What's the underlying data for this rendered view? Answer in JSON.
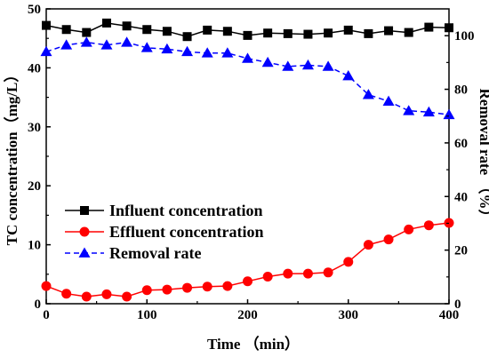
{
  "chart_data": {
    "type": "line",
    "xlabel": "Time （min）",
    "ylabel": "TC concentration（mg/L）",
    "y2label": "Removal rate （%）",
    "x": [
      0,
      20,
      40,
      60,
      80,
      100,
      120,
      140,
      160,
      180,
      200,
      220,
      240,
      260,
      280,
      300,
      320,
      340,
      360,
      380,
      400
    ],
    "xlim": [
      0,
      400
    ],
    "ylim": [
      0,
      50
    ],
    "y2lim": [
      0,
      110
    ],
    "xticks": [
      "0",
      "100",
      "200",
      "300",
      "400"
    ],
    "yticks": [
      "0",
      "10",
      "20",
      "30",
      "40",
      "50"
    ],
    "y2ticks": [
      "0",
      "20",
      "40",
      "60",
      "80",
      "100"
    ],
    "grid": false,
    "legend_position": "center-left",
    "series": [
      {
        "name": "Influent concentration",
        "axis": "left",
        "color": "#000000",
        "marker": "square",
        "line_style": "solid",
        "values": [
          47.2,
          46.5,
          46.0,
          47.6,
          47.1,
          46.5,
          46.2,
          45.3,
          46.4,
          46.2,
          45.5,
          45.9,
          45.8,
          45.7,
          45.9,
          46.4,
          45.8,
          46.3,
          46.0,
          46.9,
          46.8
        ]
      },
      {
        "name": "Effluent concentration",
        "axis": "left",
        "color": "#ff0000",
        "marker": "circle",
        "line_style": "solid",
        "values": [
          3.0,
          1.7,
          1.2,
          1.6,
          1.2,
          2.3,
          2.4,
          2.7,
          2.9,
          3.0,
          3.8,
          4.6,
          5.1,
          5.1,
          5.3,
          7.1,
          10.0,
          10.9,
          12.6,
          13.3,
          13.7
        ]
      },
      {
        "name": "Removal rate",
        "axis": "right",
        "color": "#0000ff",
        "marker": "triangle",
        "line_style": "dashed",
        "values": [
          94,
          96.5,
          97.5,
          96.5,
          97.5,
          95.5,
          95,
          94,
          93.5,
          93.5,
          91.5,
          90,
          88.5,
          89,
          88.5,
          85,
          78,
          75.5,
          72,
          71.5,
          70.5
        ]
      }
    ]
  }
}
